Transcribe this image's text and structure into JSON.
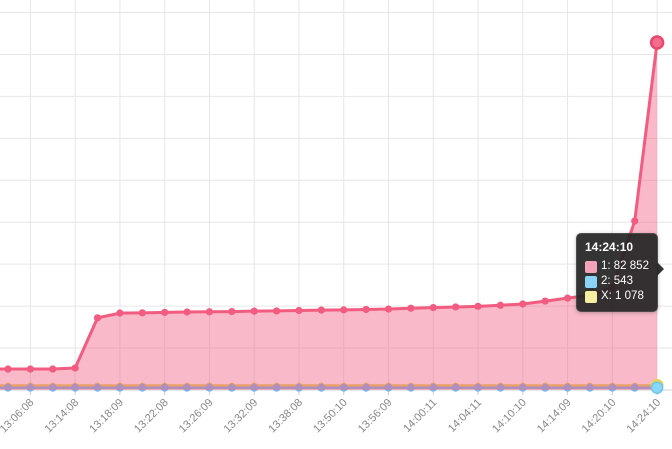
{
  "chart_data": {
    "type": "area",
    "title": "",
    "xlabel": "",
    "ylabel": "",
    "ylim": [
      0,
      90000
    ],
    "y_gridline_step": 10000,
    "grid": true,
    "legend_position": "none",
    "x_tick_labels": [
      "13:06:08",
      "13:14:08",
      "13:18:09",
      "13:22:08",
      "13:26:09",
      "13:32:09",
      "13:38:08",
      "13:50:10",
      "13:56:09",
      "14:00:11",
      "14:04:11",
      "14:10:10",
      "14:14:09",
      "14:20:10",
      "14:24:10"
    ],
    "ticks_every_n_points": 2,
    "num_points": 30,
    "series": [
      {
        "name": "1",
        "color": "#f15c80",
        "fill": "rgba(241,92,128,0.43)",
        "values": [
          5000,
          5000,
          5000,
          5250,
          17200,
          18350,
          18400,
          18500,
          18600,
          18650,
          18700,
          18800,
          18850,
          18950,
          19050,
          19100,
          19200,
          19300,
          19500,
          19650,
          19800,
          19950,
          20200,
          20500,
          21200,
          21900,
          22600,
          24500,
          40300,
          82852
        ]
      },
      {
        "name": "2",
        "color": "#7cb5ec",
        "values": [
          543,
          543,
          543,
          543,
          543,
          543,
          543,
          543,
          543,
          543,
          543,
          543,
          543,
          543,
          543,
          543,
          543,
          543,
          543,
          543,
          543,
          543,
          543,
          543,
          543,
          543,
          543,
          543,
          543,
          543
        ]
      },
      {
        "name": "X",
        "color": "#e4d354",
        "values": [
          1078,
          1078,
          1078,
          1078,
          1078,
          1078,
          1078,
          1078,
          1078,
          1078,
          1078,
          1078,
          1078,
          1078,
          1078,
          1078,
          1078,
          1078,
          1078,
          1078,
          1078,
          1078,
          1078,
          1078,
          1078,
          1078,
          1078,
          1078,
          1078,
          1078
        ]
      }
    ],
    "tooltip": {
      "title": "14:24:10",
      "rows": [
        {
          "swatch_color": "#f4a3b8",
          "label": "1: 82 852"
        },
        {
          "swatch_color": "#8ad4f8",
          "label": "2: 543"
        },
        {
          "swatch_color": "#f5ef9f",
          "label": "X: 1 078"
        }
      ]
    },
    "colors": {
      "gridline": "#e6e6e6",
      "axis_line": "#d0d0d0",
      "tick": "#cccccc",
      "x_label_text": "#888888",
      "hover_marker_blue_fill": "#8ad8f8",
      "hover_marker_blue_ring": "#6ec6ea",
      "hover_marker_pink_fill": "#f36d8e",
      "hover_marker_pink_ring": "#e8486b"
    }
  }
}
